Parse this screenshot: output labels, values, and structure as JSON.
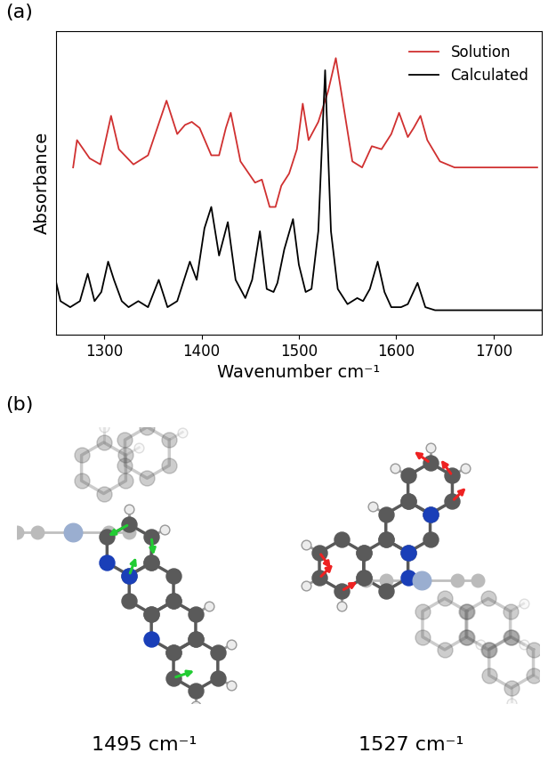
{
  "chart_data": {
    "type": "line",
    "title": "(a)",
    "x_label": "Wavenumber cm⁻¹",
    "y_label": "Absorbance",
    "xlim": [
      1250,
      1750
    ],
    "xticks": [
      1300,
      1400,
      1500,
      1600,
      1700
    ],
    "ylim": [
      0,
      1
    ],
    "tick_labels": "x",
    "legend": "upper right",
    "series": [
      {
        "name": "Solution",
        "color": "#d03030",
        "x": [
          1268,
          1272,
          1285,
          1296,
          1307,
          1315,
          1330,
          1345,
          1364,
          1375,
          1383,
          1390,
          1398,
          1410,
          1418,
          1425,
          1430,
          1440,
          1455,
          1462,
          1470,
          1476,
          1482,
          1490,
          1498,
          1504,
          1510,
          1520,
          1530,
          1538,
          1545,
          1555,
          1565,
          1575,
          1585,
          1595,
          1603,
          1612,
          1618,
          1625,
          1632,
          1645,
          1660,
          1700,
          1745
        ],
        "values": [
          0.55,
          0.64,
          0.58,
          0.56,
          0.72,
          0.61,
          0.56,
          0.59,
          0.77,
          0.66,
          0.69,
          0.7,
          0.68,
          0.59,
          0.59,
          0.68,
          0.73,
          0.57,
          0.5,
          0.51,
          0.42,
          0.42,
          0.49,
          0.53,
          0.61,
          0.76,
          0.64,
          0.7,
          0.8,
          0.91,
          0.77,
          0.57,
          0.55,
          0.62,
          0.61,
          0.66,
          0.73,
          0.65,
          0.68,
          0.72,
          0.64,
          0.57,
          0.55,
          0.55,
          0.55
        ]
      },
      {
        "name": "Calculated",
        "color": "#000000",
        "x": [
          1250,
          1255,
          1265,
          1275,
          1283,
          1290,
          1297,
          1304,
          1310,
          1318,
          1325,
          1335,
          1345,
          1356,
          1365,
          1375,
          1388,
          1395,
          1403,
          1410,
          1418,
          1427,
          1435,
          1445,
          1452,
          1460,
          1467,
          1474,
          1478,
          1485,
          1494,
          1500,
          1507,
          1513,
          1520,
          1527,
          1533,
          1540,
          1550,
          1560,
          1566,
          1573,
          1581,
          1588,
          1595,
          1605,
          1612,
          1622,
          1630,
          1640,
          1660,
          1700,
          1750
        ],
        "values": [
          0.18,
          0.11,
          0.09,
          0.11,
          0.2,
          0.11,
          0.14,
          0.24,
          0.18,
          0.11,
          0.09,
          0.11,
          0.09,
          0.18,
          0.09,
          0.11,
          0.24,
          0.18,
          0.35,
          0.42,
          0.26,
          0.37,
          0.18,
          0.12,
          0.18,
          0.34,
          0.15,
          0.14,
          0.17,
          0.28,
          0.38,
          0.23,
          0.14,
          0.15,
          0.34,
          0.87,
          0.34,
          0.15,
          0.1,
          0.12,
          0.11,
          0.15,
          0.24,
          0.14,
          0.09,
          0.09,
          0.1,
          0.17,
          0.09,
          0.08,
          0.08,
          0.08,
          0.08
        ]
      }
    ]
  },
  "diagram": {
    "label": "(b)",
    "modes": [
      {
        "label": "1495 cm⁻¹"
      },
      {
        "label": "1527 cm⁻¹"
      }
    ]
  }
}
